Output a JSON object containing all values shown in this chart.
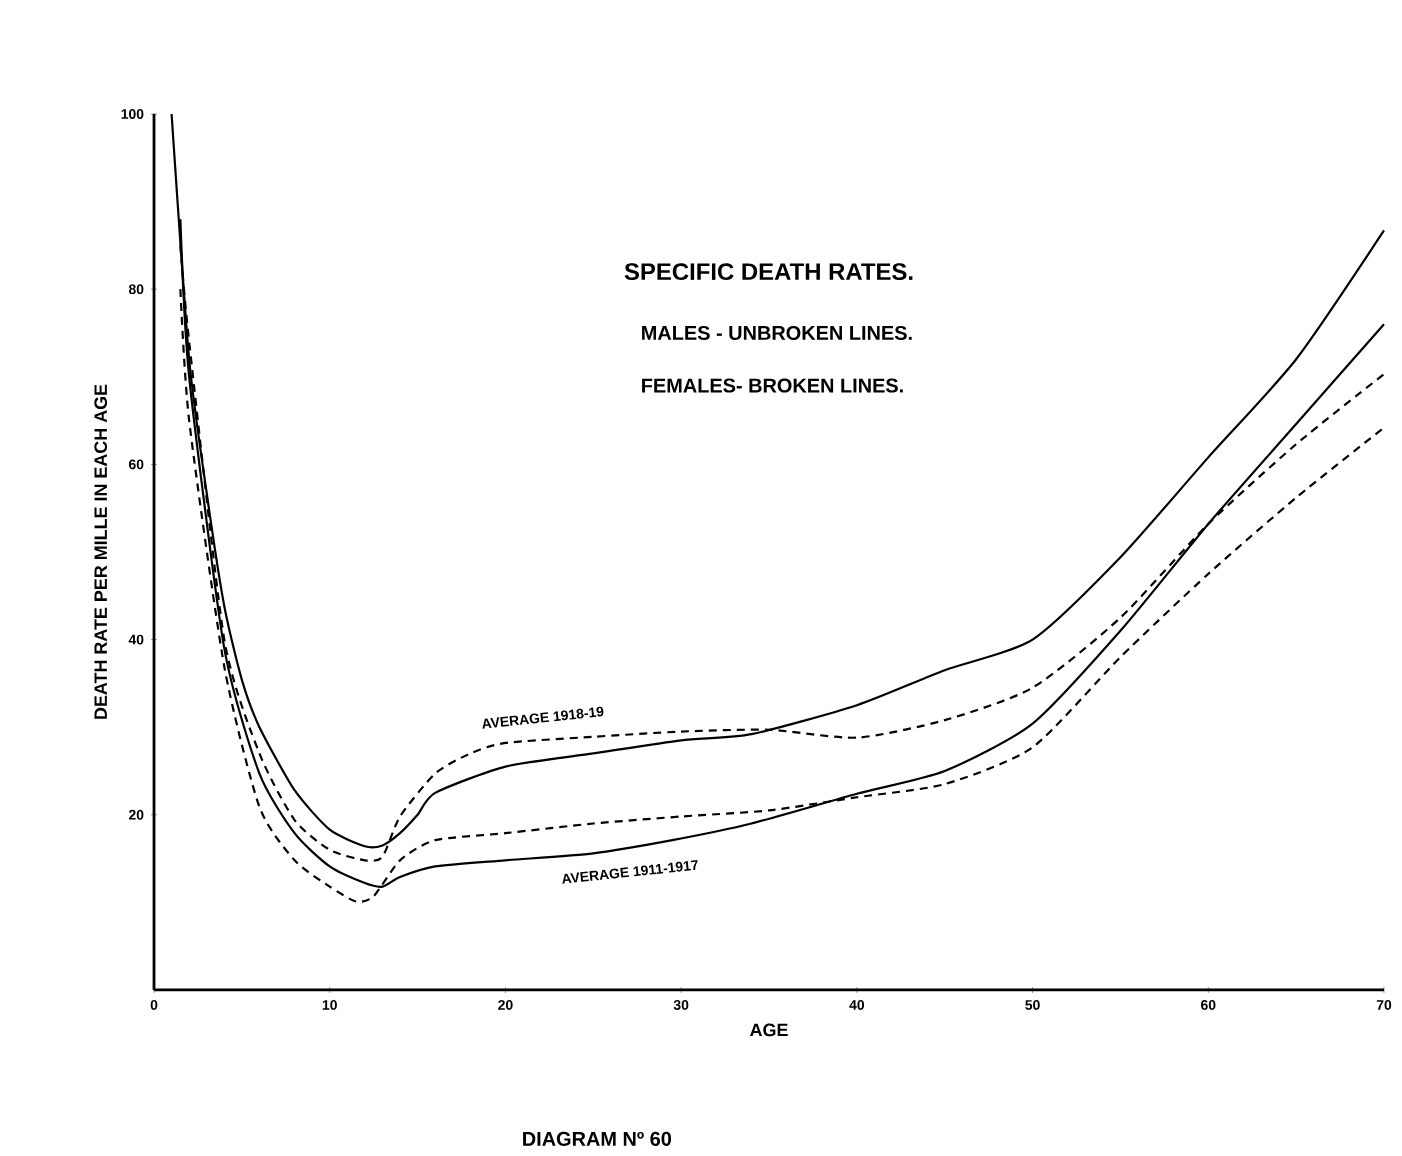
{
  "chart_data": {
    "type": "line",
    "title": "SPECIFIC DEATH RATES.",
    "xlabel": "AGE",
    "ylabel": "DEATH RATE PER MILLE IN EACH AGE",
    "annotations": [
      "MALES - UNBROKEN LINES.",
      "FEMALES- BROKEN LINES.",
      "AVERAGE 1918-19",
      "AVERAGE 1911-1917",
      "DIAGRAM Nº 60"
    ],
    "xlim": [
      0,
      70
    ],
    "ylim": [
      0,
      100
    ],
    "xticks": [
      0,
      10,
      20,
      30,
      40,
      50,
      60,
      70
    ],
    "yticks": [
      20,
      40,
      60,
      80,
      100
    ],
    "grid": false,
    "marker": "none",
    "series": [
      {
        "color": "#000000",
        "line_style": "solid",
        "x": [
          1,
          2,
          3,
          4,
          5,
          6,
          8,
          10,
          12,
          13,
          14,
          15,
          16,
          20,
          25,
          30,
          34,
          40,
          45,
          50,
          55,
          60,
          65,
          70
        ],
        "values": [
          100,
          72,
          56.7,
          43.8,
          35.4,
          30,
          22.8,
          18.3,
          16.4,
          16.5,
          17.9,
          20,
          22.5,
          25.5,
          27,
          28.5,
          29.2,
          32.5,
          36.5,
          40,
          49.4,
          60.8,
          72,
          86.7
        ]
      },
      {
        "color": "#000000",
        "line_style": "dashed",
        "x": [
          1.5,
          2,
          4,
          6,
          8,
          10,
          12,
          13,
          14,
          16,
          18,
          20,
          25,
          30,
          35,
          40,
          45,
          50,
          55,
          60,
          65,
          70
        ],
        "values": [
          85,
          74,
          40,
          27,
          19.4,
          16,
          14.8,
          15.2,
          19.8,
          24.7,
          27,
          28.2,
          28.9,
          29.5,
          29.7,
          28.8,
          30.8,
          34.5,
          42.5,
          53.2,
          62.3,
          70.3
        ]
      },
      {
        "color": "#000000",
        "line_style": "solid",
        "x": [
          1.5,
          2,
          4,
          6,
          8,
          10,
          12,
          13,
          14,
          16,
          20,
          25,
          29.5,
          34,
          40,
          45,
          50,
          55,
          60,
          65,
          70
        ],
        "values": [
          88,
          70,
          39,
          24.7,
          17.9,
          14.1,
          12.2,
          11.8,
          12.9,
          14.1,
          14.8,
          15.6,
          17.1,
          19,
          22.4,
          25,
          30.4,
          41,
          53.2,
          64.6,
          76
        ]
      },
      {
        "color": "#000000",
        "line_style": "dashed",
        "x": [
          1.5,
          2,
          4,
          6,
          8,
          10,
          11.5,
          12.5,
          14,
          16,
          20,
          25,
          30,
          35,
          40,
          45,
          50,
          55,
          60,
          65,
          70
        ],
        "values": [
          80,
          65,
          36.9,
          20.9,
          14.8,
          11.8,
          10.1,
          10.7,
          14.8,
          17.1,
          17.9,
          19,
          19.8,
          20.5,
          22,
          23.5,
          27.7,
          38,
          47.5,
          56.2,
          64.2
        ]
      }
    ]
  }
}
